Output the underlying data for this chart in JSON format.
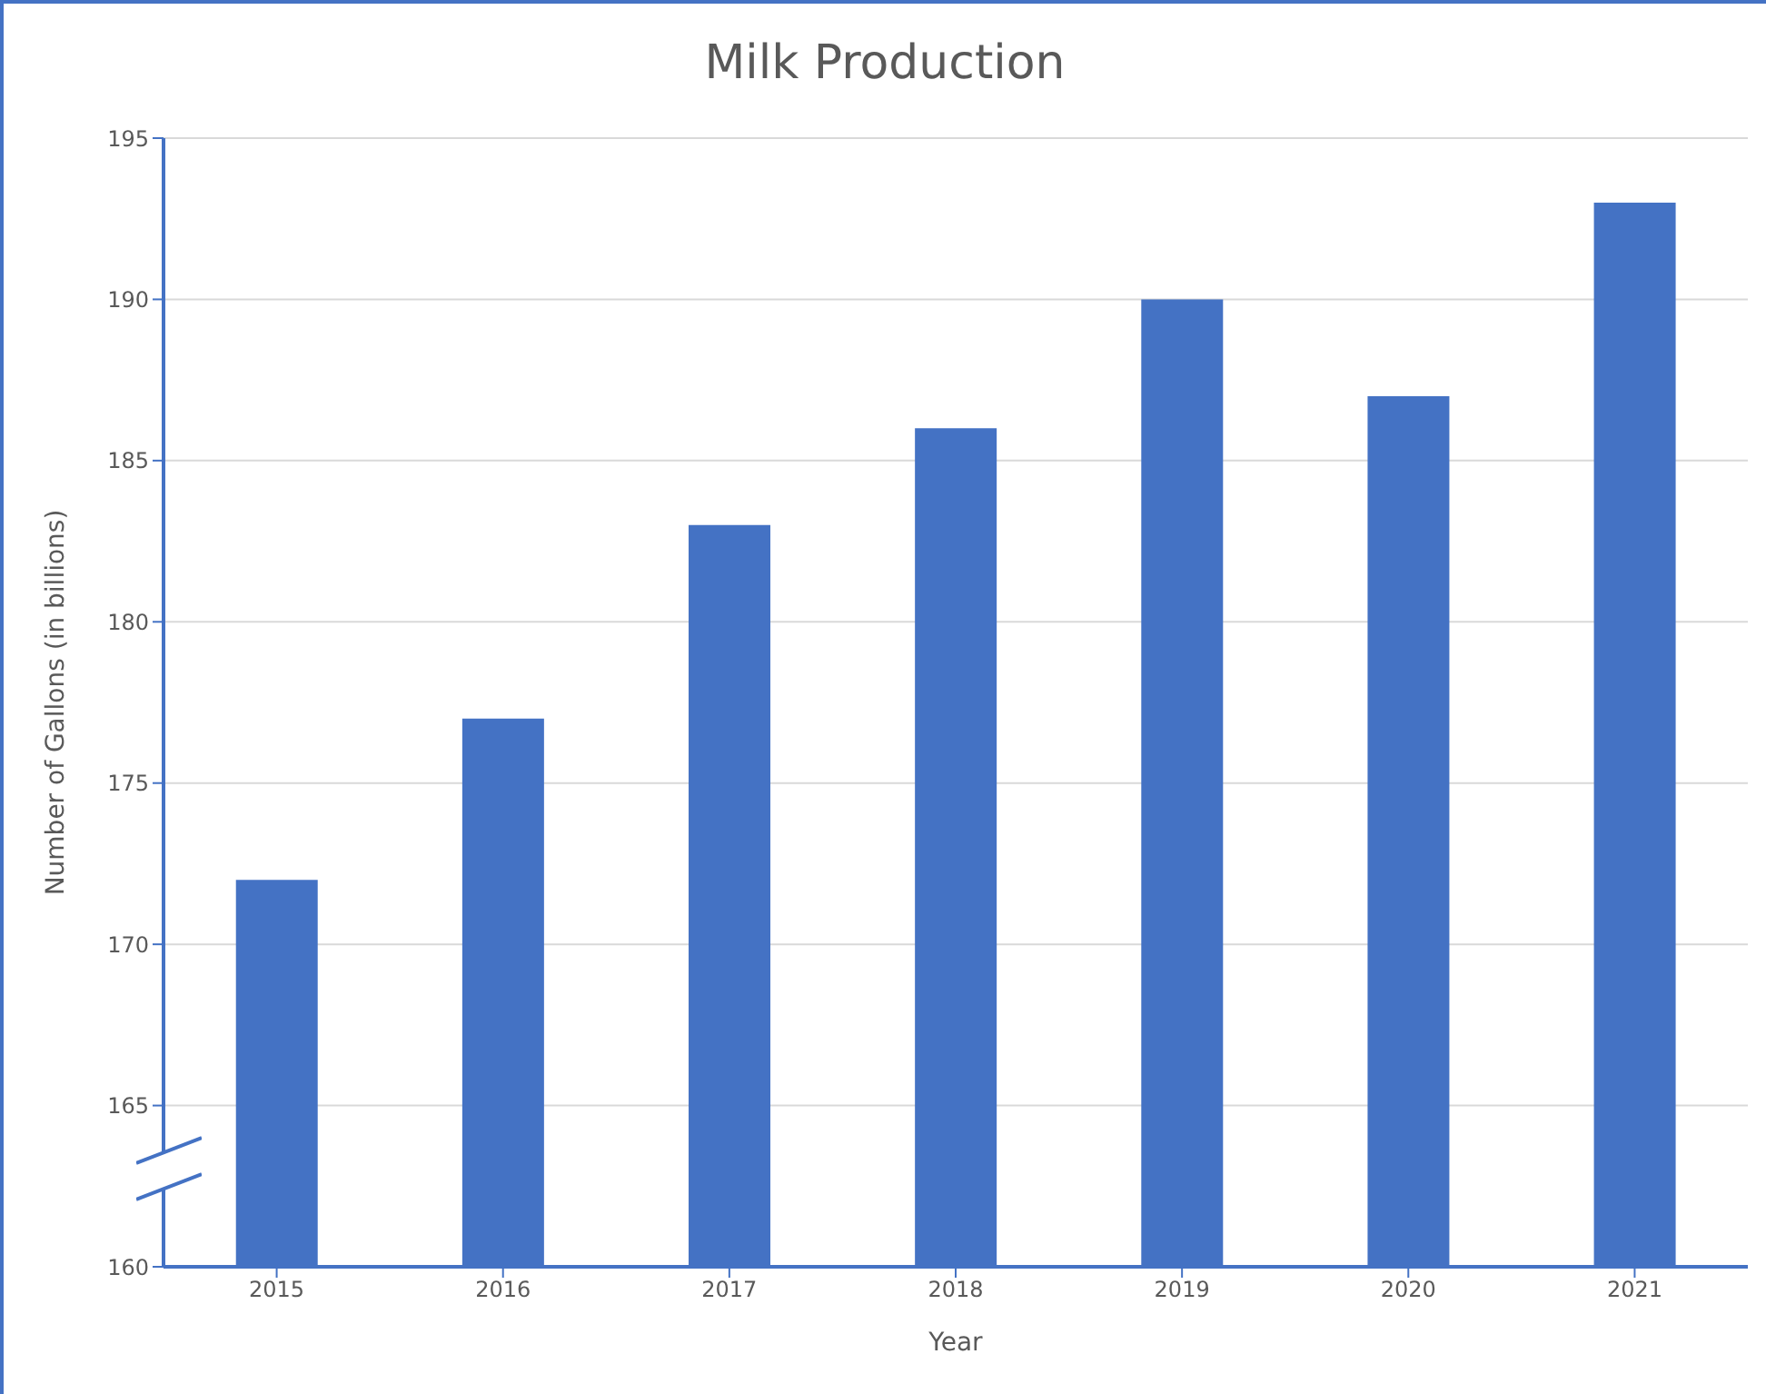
{
  "chart_data": {
    "type": "bar",
    "title": "Milk Production",
    "xlabel": "Year",
    "ylabel": "Number of Gallons (in billions)",
    "categories": [
      "2015",
      "2016",
      "2017",
      "2018",
      "2019",
      "2020",
      "2021"
    ],
    "values": [
      172,
      177,
      183,
      186,
      190,
      187,
      193
    ],
    "color": "#4472c4",
    "ylim": [
      160,
      195
    ],
    "yticks": [
      160,
      165,
      170,
      175,
      180,
      185,
      190,
      195
    ],
    "grid": "y",
    "legend": false
  }
}
